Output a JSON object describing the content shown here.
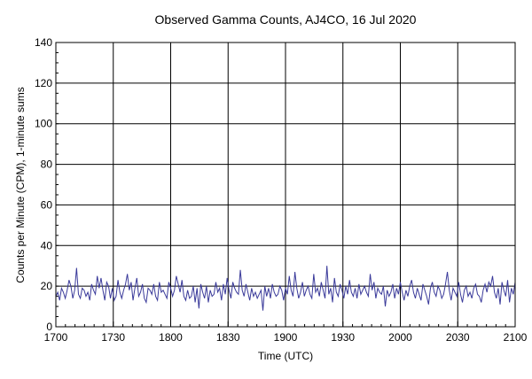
{
  "chart_data": {
    "type": "line",
    "title": "Observed Gamma Counts, AJ4CO, 16 Jul 2020",
    "xlabel": "Time (UTC)",
    "ylabel": "Counts per Minute (CPM), 1-minute sums",
    "x_tick_labels": [
      "1700",
      "1730",
      "1800",
      "1830",
      "1900",
      "1930",
      "2000",
      "2030",
      "2100"
    ],
    "y_tick_labels": [
      "0",
      "20",
      "40",
      "60",
      "80",
      "100",
      "120",
      "140"
    ],
    "x_range_minutes": [
      0,
      240
    ],
    "ylim": [
      0,
      140
    ],
    "grid": true,
    "series_color": "#3a3a9a",
    "series": [
      {
        "values": [
          15,
          17,
          13,
          19,
          17,
          14,
          18,
          23,
          20,
          14,
          18,
          29,
          16,
          14,
          19,
          18,
          15,
          17,
          13,
          21,
          18,
          16,
          25,
          19,
          24,
          18,
          13,
          22,
          20,
          14,
          19,
          13,
          15,
          23,
          17,
          14,
          18,
          21,
          26,
          18,
          22,
          13,
          19,
          24,
          15,
          17,
          21,
          14,
          12,
          19,
          18,
          16,
          21,
          15,
          13,
          22,
          17,
          18,
          16,
          14,
          22,
          19,
          15,
          18,
          25,
          21,
          17,
          23,
          15,
          13,
          18,
          14,
          15,
          20,
          12,
          19,
          9,
          21,
          17,
          14,
          20,
          12,
          18,
          15,
          16,
          22,
          17,
          19,
          13,
          21,
          16,
          24,
          18,
          14,
          22,
          19,
          17,
          16,
          28,
          18,
          15,
          21,
          17,
          13,
          19,
          15,
          17,
          14,
          16,
          18,
          8,
          20,
          15,
          19,
          14,
          21,
          17,
          15,
          16,
          20,
          18,
          13,
          19,
          16,
          25,
          18,
          15,
          27,
          19,
          14,
          17,
          22,
          15,
          18,
          20,
          16,
          14,
          26,
          17,
          19,
          15,
          22,
          18,
          14,
          30,
          16,
          19,
          12,
          24,
          17,
          15,
          21,
          18,
          14,
          20,
          16,
          23,
          17,
          15,
          19,
          14,
          21,
          16,
          18,
          20,
          17,
          15,
          26,
          18,
          22,
          14,
          19,
          17,
          16,
          20,
          10,
          18,
          15,
          17,
          21,
          14,
          19,
          16,
          22,
          17,
          13,
          18,
          15,
          20,
          23,
          17,
          14,
          19,
          16,
          13,
          21,
          18,
          15,
          11,
          19,
          22,
          17,
          15,
          20,
          18,
          14,
          16,
          21,
          27,
          18,
          13,
          19,
          17,
          15,
          22,
          16,
          12,
          18,
          20,
          15,
          17,
          14,
          19,
          21,
          16,
          15,
          12,
          18,
          21,
          17,
          22,
          20,
          25,
          17,
          14,
          19,
          11,
          22,
          18,
          15,
          23,
          12,
          19,
          16,
          22
        ]
      }
    ]
  }
}
